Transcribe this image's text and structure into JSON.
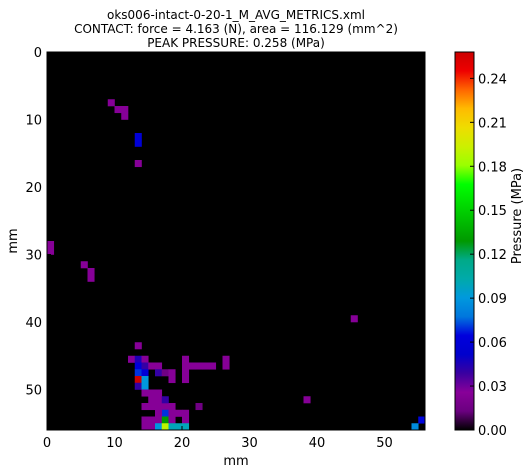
{
  "chart_data": {
    "type": "heatmap",
    "title_lines": [
      "oks006-intact-0-20-1_M_AVG_METRICS.xml",
      "CONTACT: force = 4.163 (N), area = 116.129 (mm^2)",
      "PEAK PRESSURE: 0.258 (MPa)"
    ],
    "xlabel": "mm",
    "ylabel": "mm",
    "xlim": [
      0,
      56
    ],
    "ylim": [
      56,
      0
    ],
    "x_ticks": [
      "0",
      "10",
      "20",
      "30",
      "40",
      "50"
    ],
    "x_tick_values": [
      0,
      10,
      20,
      30,
      40,
      50
    ],
    "y_ticks": [
      "0",
      "10",
      "20",
      "30",
      "40",
      "50"
    ],
    "y_tick_values": [
      0,
      10,
      20,
      30,
      40,
      50
    ],
    "background_color": "#000000",
    "colormap": "nipy_spectral",
    "colorbar": {
      "label": "Pressure (MPa)",
      "vmin": 0.0,
      "vmax": 0.258,
      "tick_values": [
        0.0,
        0.03,
        0.06,
        0.09,
        0.12,
        0.15,
        0.18,
        0.21,
        0.24
      ],
      "tick_labels": [
        "0.00",
        "0.03",
        "0.06",
        "0.09",
        "0.12",
        "0.15",
        "0.18",
        "0.21",
        "0.24"
      ]
    },
    "cells": [
      [
        9,
        7,
        0.025
      ],
      [
        10,
        8,
        0.025
      ],
      [
        11,
        8,
        0.025
      ],
      [
        11,
        9,
        0.025
      ],
      [
        13,
        12,
        0.06
      ],
      [
        13,
        13,
        0.06
      ],
      [
        13,
        16,
        0.025
      ],
      [
        0,
        28,
        0.025
      ],
      [
        0,
        29,
        0.025
      ],
      [
        5,
        31,
        0.025
      ],
      [
        6,
        32,
        0.025
      ],
      [
        6,
        33,
        0.025
      ],
      [
        45,
        39,
        0.025
      ],
      [
        13,
        43,
        0.025
      ],
      [
        12,
        45,
        0.025
      ],
      [
        13,
        45,
        0.045
      ],
      [
        13,
        46,
        0.06
      ],
      [
        13,
        47,
        0.07
      ],
      [
        13,
        48,
        0.258
      ],
      [
        13,
        49,
        0.04
      ],
      [
        14,
        45,
        0.025
      ],
      [
        14,
        46,
        0.04
      ],
      [
        14,
        47,
        0.06
      ],
      [
        14,
        48,
        0.09
      ],
      [
        14,
        49,
        0.09
      ],
      [
        15,
        46,
        0.025
      ],
      [
        16,
        46,
        0.025
      ],
      [
        16,
        47,
        0.04
      ],
      [
        17,
        47,
        0.015
      ],
      [
        18,
        47,
        0.025
      ],
      [
        18,
        48,
        0.025
      ],
      [
        20,
        45,
        0.025
      ],
      [
        20,
        46,
        0.025
      ],
      [
        20,
        47,
        0.025
      ],
      [
        20,
        48,
        0.025
      ],
      [
        21,
        46,
        0.025
      ],
      [
        22,
        46,
        0.025
      ],
      [
        23,
        46,
        0.025
      ],
      [
        24,
        46,
        0.025
      ],
      [
        26,
        45,
        0.025
      ],
      [
        26,
        46,
        0.025
      ],
      [
        14,
        50,
        0.025
      ],
      [
        15,
        50,
        0.025
      ],
      [
        16,
        50,
        0.025
      ],
      [
        15,
        51,
        0.025
      ],
      [
        16,
        51,
        0.025
      ],
      [
        14,
        52,
        0.025
      ],
      [
        15,
        52,
        0.025
      ],
      [
        16,
        52,
        0.025
      ],
      [
        17,
        52,
        0.025
      ],
      [
        18,
        52,
        0.025
      ],
      [
        17,
        51,
        0.04
      ],
      [
        17,
        53,
        0.07
      ],
      [
        16,
        53,
        0.025
      ],
      [
        18,
        53,
        0.025
      ],
      [
        19,
        53,
        0.025
      ],
      [
        20,
        53,
        0.025
      ],
      [
        14,
        54,
        0.025
      ],
      [
        15,
        54,
        0.025
      ],
      [
        16,
        54,
        0.025
      ],
      [
        17,
        54,
        0.13
      ],
      [
        18,
        54,
        0.025
      ],
      [
        20,
        54,
        0.025
      ],
      [
        14,
        55,
        0.025
      ],
      [
        15,
        55,
        0.025
      ],
      [
        16,
        55,
        0.09
      ],
      [
        17,
        55,
        0.19
      ],
      [
        18,
        55,
        0.1
      ],
      [
        19,
        55,
        0.1
      ],
      [
        20,
        55,
        0.1
      ],
      [
        22,
        52,
        0.015
      ],
      [
        38,
        51,
        0.025
      ],
      [
        55,
        54,
        0.065
      ],
      [
        54,
        55,
        0.085
      ]
    ]
  }
}
